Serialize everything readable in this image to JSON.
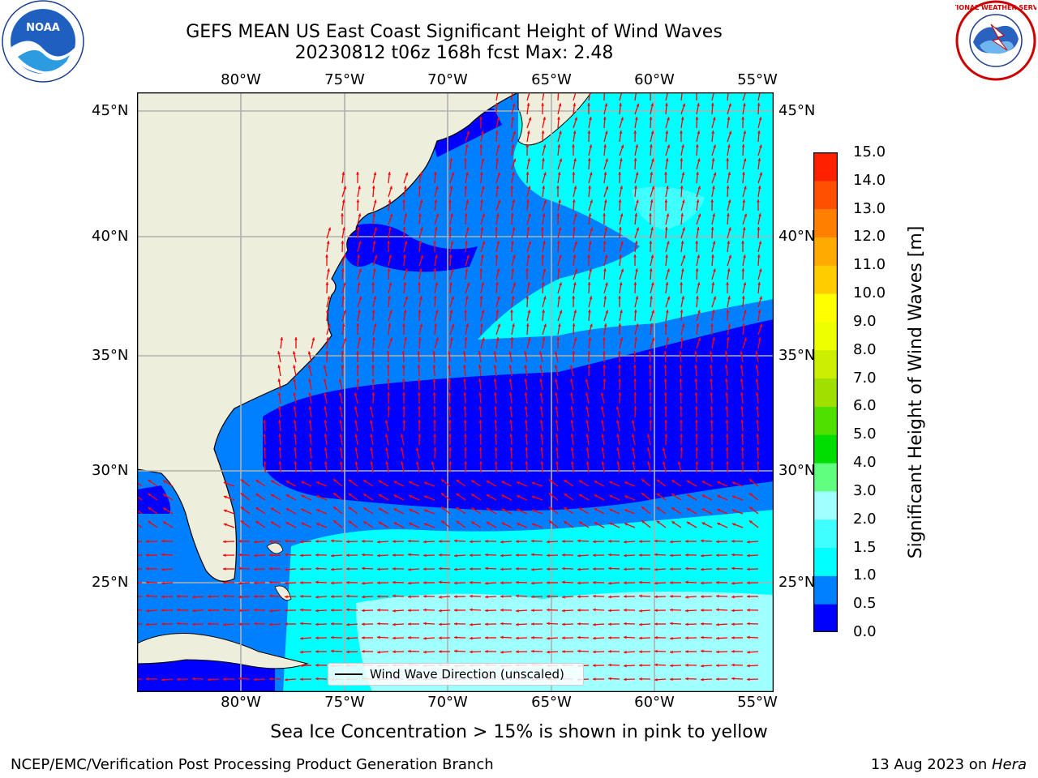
{
  "header": {
    "title_line1": "GEFS MEAN US East Coast Significant Height of Wind Waves",
    "title_line2": "20230812 t06z 168h fcst   Max: 2.48"
  },
  "logos": {
    "left": "noaa-logo",
    "left_text": "NOAA",
    "right": "national-weather-service-logo",
    "right_text": "NATIONAL WEATHER SERVICE"
  },
  "axes": {
    "longitude_labels": [
      "80°W",
      "75°W",
      "70°W",
      "65°W",
      "60°W",
      "55°W"
    ],
    "latitude_labels": [
      "45°N",
      "40°N",
      "35°N",
      "30°N",
      "25°N"
    ]
  },
  "colorbar": {
    "ticks": [
      "0.0",
      "0.5",
      "1.0",
      "1.5",
      "2.0",
      "3.0",
      "4.0",
      "5.0",
      "6.0",
      "7.0",
      "8.0",
      "9.0",
      "10.0",
      "11.0",
      "12.0",
      "13.0",
      "14.0",
      "15.0"
    ],
    "colors": [
      "#0000ff",
      "#0080ff",
      "#00ffff",
      "#40ffff",
      "#a0ffff",
      "#60ff80",
      "#00dd00",
      "#50e000",
      "#a0e000",
      "#ccee00",
      "#eeff00",
      "#ffff00",
      "#ffcc00",
      "#ffaa00",
      "#ff8000",
      "#ff5000",
      "#ff2000"
    ],
    "label": "Significant Height of Wind Waves [m]"
  },
  "map_colors": {
    "land": "#eeeedd",
    "arrow": "#ff0000",
    "grid": "#b0b0b0"
  },
  "legend": {
    "label": "Wind Wave Direction (unscaled)"
  },
  "footer": {
    "sea_ice_note": "Sea Ice Concentration > 15% is shown in pink to yellow",
    "branch": "NCEP/EMC/Verification Post Processing Product Generation Branch",
    "date_prefix": "13 Aug 2023 on ",
    "machine": "Hera"
  }
}
